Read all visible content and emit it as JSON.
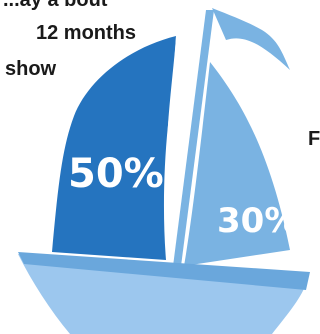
{
  "caption": {
    "line1": "...ay a bout",
    "line2": "12 months",
    "line3": "show",
    "line4": "F"
  },
  "stats": {
    "main_sail_value": "50%",
    "jib_value": "30%"
  },
  "colors": {
    "main_sail": "#2574bf",
    "light_blue": "#7ab3e2",
    "hull_dark": "#6aa7dc",
    "hull_light": "#9cc7ee",
    "white": "#ffffff"
  }
}
